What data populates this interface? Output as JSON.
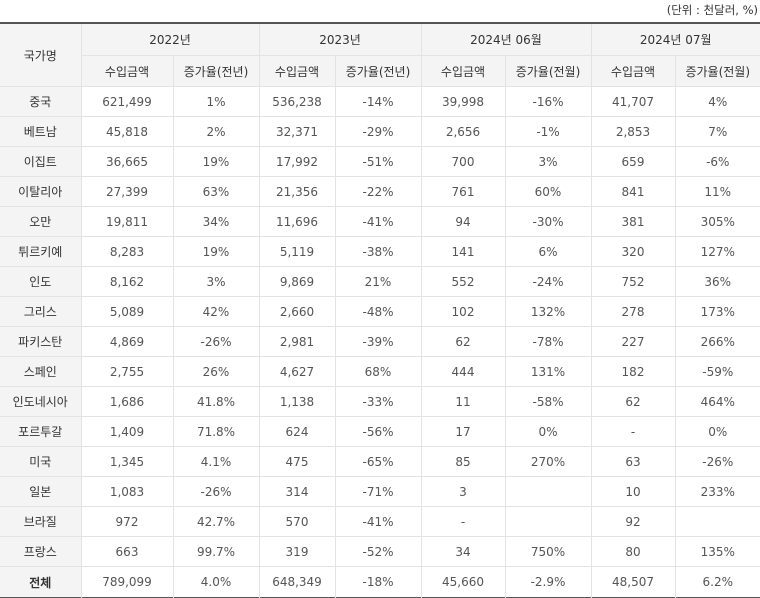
{
  "unit_note": "(단위 : 천달러, %)",
  "header": {
    "country": "국가명",
    "periods": [
      "2022년",
      "2023년",
      "2024년 06월",
      "2024년 07월"
    ],
    "subheaders": [
      "수입금액",
      "증가율(전년)",
      "수입금액",
      "증가율(전년)",
      "수입금액",
      "증가율(전월)",
      "수입금액",
      "증가율(전월)"
    ]
  },
  "rows": [
    {
      "country": "중국",
      "values": [
        "621,499",
        "1%",
        "536,238",
        "-14%",
        "39,998",
        "-16%",
        "41,707",
        "4%"
      ]
    },
    {
      "country": "베트남",
      "values": [
        "45,818",
        "2%",
        "32,371",
        "-29%",
        "2,656",
        "-1%",
        "2,853",
        "7%"
      ]
    },
    {
      "country": "이집트",
      "values": [
        "36,665",
        "19%",
        "17,992",
        "-51%",
        "700",
        "3%",
        "659",
        "-6%"
      ]
    },
    {
      "country": "이탈리아",
      "values": [
        "27,399",
        "63%",
        "21,356",
        "-22%",
        "761",
        "60%",
        "841",
        "11%"
      ]
    },
    {
      "country": "오만",
      "values": [
        "19,811",
        "34%",
        "11,696",
        "-41%",
        "94",
        "-30%",
        "381",
        "305%"
      ]
    },
    {
      "country": "튀르키예",
      "values": [
        "8,283",
        "19%",
        "5,119",
        "-38%",
        "141",
        "6%",
        "320",
        "127%"
      ]
    },
    {
      "country": "인도",
      "values": [
        "8,162",
        "3%",
        "9,869",
        "21%",
        "552",
        "-24%",
        "752",
        "36%"
      ]
    },
    {
      "country": "그리스",
      "values": [
        "5,089",
        "42%",
        "2,660",
        "-48%",
        "102",
        "132%",
        "278",
        "173%"
      ]
    },
    {
      "country": "파키스탄",
      "values": [
        "4,869",
        "-26%",
        "2,981",
        "-39%",
        "62",
        "-78%",
        "227",
        "266%"
      ]
    },
    {
      "country": "스페인",
      "values": [
        "2,755",
        "26%",
        "4,627",
        "68%",
        "444",
        "131%",
        "182",
        "-59%"
      ]
    },
    {
      "country": "인도네시아",
      "values": [
        "1,686",
        "41.8%",
        "1,138",
        "-33%",
        "11",
        "-58%",
        "62",
        "464%"
      ]
    },
    {
      "country": "포르투갈",
      "values": [
        "1,409",
        "71.8%",
        "624",
        "-56%",
        "17",
        "0%",
        "-",
        "0%"
      ]
    },
    {
      "country": "미국",
      "values": [
        "1,345",
        "4.1%",
        "475",
        "-65%",
        "85",
        "270%",
        "63",
        "-26%"
      ]
    },
    {
      "country": "일본",
      "values": [
        "1,083",
        "-26%",
        "314",
        "-71%",
        "3",
        "",
        "10",
        "233%"
      ]
    },
    {
      "country": "브라질",
      "values": [
        "972",
        "42.7%",
        "570",
        "-41%",
        "-",
        "",
        "92",
        ""
      ]
    },
    {
      "country": "프랑스",
      "values": [
        "663",
        "99.7%",
        "319",
        "-52%",
        "34",
        "750%",
        "80",
        "135%"
      ]
    }
  ],
  "total": {
    "country": "전체",
    "values": [
      "789,099",
      "4.0%",
      "648,349",
      "-18%",
      "45,660",
      "-2.9%",
      "48,507",
      "6.2%"
    ]
  }
}
